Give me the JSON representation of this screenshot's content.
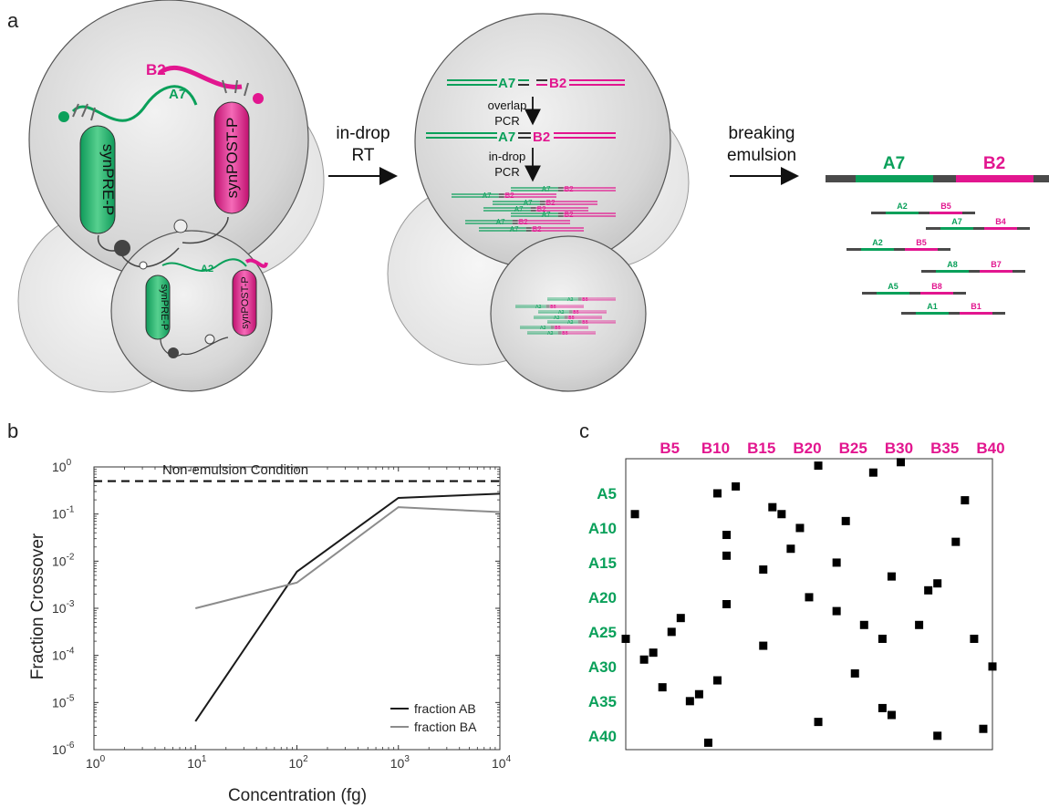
{
  "panels": {
    "a": {
      "letter": "a",
      "cyl_pre": "synPRE-P",
      "cyl_post": "synPOST-P",
      "rna_a": "A7",
      "rna_b": "B2",
      "rna_a_small": "A2",
      "arrow1_line1": "in-drop",
      "arrow1_line2": "RT",
      "overlap_line1": "overlap",
      "overlap_line2": "PCR",
      "indrop_line1": "in-drop",
      "indrop_line2": "PCR",
      "arrow2_line1": "breaking",
      "arrow2_line2": "emulsion",
      "big_a": "A7",
      "big_b": "B2",
      "fragments": [
        {
          "a": "A2",
          "b": "B5"
        },
        {
          "a": "A7",
          "b": "B4"
        },
        {
          "a": "A2",
          "b": "B5"
        },
        {
          "a": "A8",
          "b": "B7"
        },
        {
          "a": "A5",
          "b": "B8"
        },
        {
          "a": "A1",
          "b": "B1"
        }
      ],
      "small_pair_a": "A2",
      "small_pair_b": "B5"
    },
    "b": {
      "letter": "b",
      "ylabel": "Fraction Crossover",
      "xlabel": "Concentration (fg)",
      "annotation": "Non-emulsion Condition"
    },
    "c": {
      "letter": "c",
      "col_labels": [
        "B5",
        "B10",
        "B15",
        "B20",
        "B25",
        "B30",
        "B35",
        "B40"
      ],
      "row_labels": [
        "A5",
        "A10",
        "A15",
        "A20",
        "A25",
        "A30",
        "A35",
        "A40"
      ]
    }
  },
  "chart_data": [
    {
      "type": "line",
      "xscale": "log",
      "yscale": "log",
      "xlim": [
        1,
        10000
      ],
      "ylim": [
        1e-06,
        1
      ],
      "xticks": [
        "10^0",
        "10^1",
        "10^2",
        "10^3",
        "10^4"
      ],
      "yticks": [
        "10^-6",
        "10^-5",
        "10^-4",
        "10^-3",
        "10^-2",
        "10^-1",
        "10^0"
      ],
      "xlabel": "Concentration (fg)",
      "ylabel": "Fraction Crossover",
      "series": [
        {
          "name": "fraction AB",
          "color": "#1a1a1a",
          "x": [
            10,
            100,
            1000,
            10000
          ],
          "y": [
            4e-06,
            0.006,
            0.22,
            0.27
          ]
        },
        {
          "name": "fraction BA",
          "color": "#8c8c8c",
          "x": [
            10,
            100,
            1000,
            10000
          ],
          "y": [
            0.001,
            0.0035,
            0.14,
            0.11
          ]
        }
      ],
      "reference_line": {
        "label": "Non-emulsion Condition",
        "y": 0.5,
        "style": "dashed"
      },
      "legend_position": "bottom-right"
    },
    {
      "type": "scatter",
      "xlabel": "",
      "ylabel": "",
      "x_categories": [
        "B5",
        "B10",
        "B15",
        "B20",
        "B25",
        "B30",
        "B35",
        "B40"
      ],
      "y_categories": [
        "A5",
        "A10",
        "A15",
        "A20",
        "A25",
        "A30",
        "A35",
        "A40"
      ],
      "xlim": [
        0,
        40
      ],
      "ylim": [
        0,
        42
      ],
      "points": [
        [
          21,
          1
        ],
        [
          27,
          2
        ],
        [
          30,
          0.5
        ],
        [
          12,
          4
        ],
        [
          10,
          5
        ],
        [
          37,
          6
        ],
        [
          16,
          7
        ],
        [
          17,
          8
        ],
        [
          1,
          8
        ],
        [
          24,
          9
        ],
        [
          19,
          10
        ],
        [
          11,
          11
        ],
        [
          36,
          12
        ],
        [
          18,
          13
        ],
        [
          11,
          14
        ],
        [
          23,
          15
        ],
        [
          15,
          16
        ],
        [
          29,
          17
        ],
        [
          34,
          18
        ],
        [
          33,
          19
        ],
        [
          20,
          20
        ],
        [
          11,
          21
        ],
        [
          23,
          22
        ],
        [
          6,
          23
        ],
        [
          26,
          24
        ],
        [
          32,
          24
        ],
        [
          5,
          25
        ],
        [
          0,
          26
        ],
        [
          28,
          26
        ],
        [
          38,
          26
        ],
        [
          15,
          27
        ],
        [
          3,
          28
        ],
        [
          2,
          29
        ],
        [
          25,
          31
        ],
        [
          10,
          32
        ],
        [
          4,
          33
        ],
        [
          8,
          34
        ],
        [
          7,
          35
        ],
        [
          28,
          36
        ],
        [
          29,
          37
        ],
        [
          21,
          38
        ],
        [
          39,
          39
        ],
        [
          34,
          40
        ],
        [
          9,
          41
        ],
        [
          40,
          30
        ]
      ]
    }
  ]
}
